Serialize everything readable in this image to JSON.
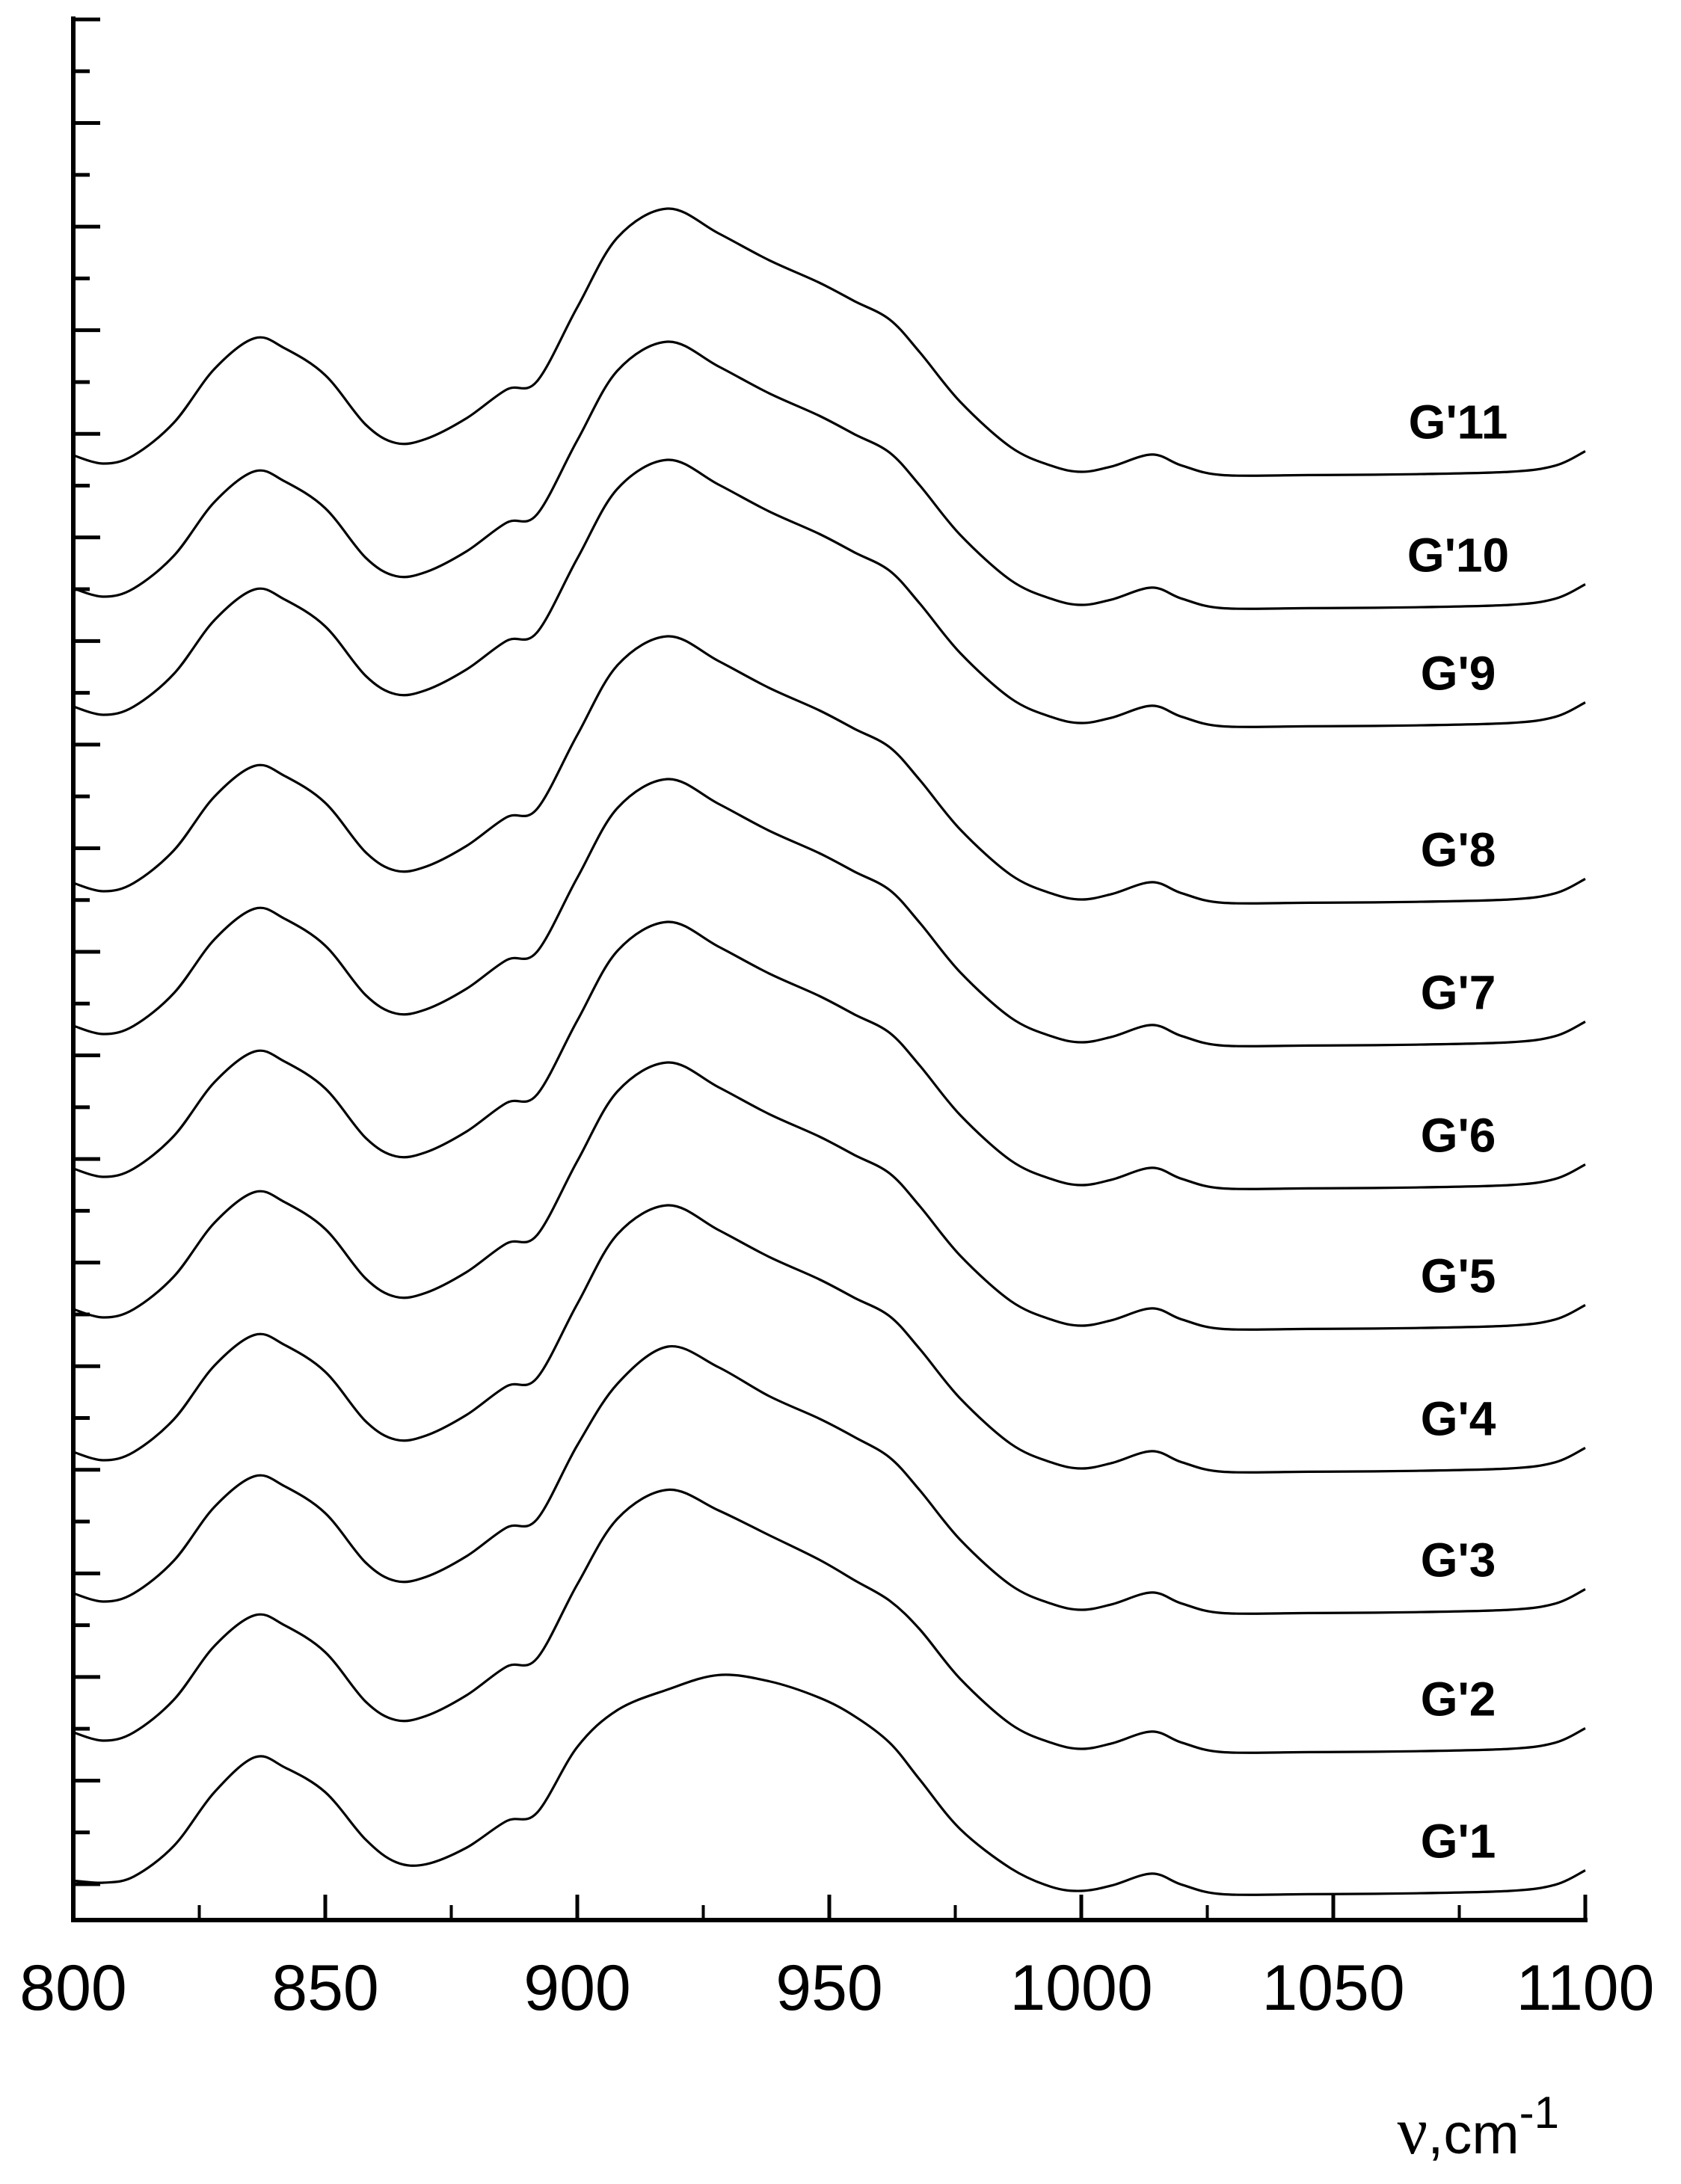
{
  "chart_data": {
    "type": "line",
    "xlim": [
      800,
      1100
    ],
    "x_ticks": [
      800,
      850,
      900,
      950,
      1000,
      1050,
      1100
    ],
    "x_tick_labels": [
      "800",
      "850",
      "900",
      "950",
      "1000",
      "1050",
      "1100"
    ],
    "y_minor_tick_count": 37,
    "xlabel": {
      "symbol": "ν",
      "unit": ",cm",
      "exponent": "-1"
    },
    "grid": false,
    "legend": "none",
    "line_color": "#000000",
    "x": [
      800,
      806,
      812,
      820,
      828,
      836,
      842,
      850,
      858,
      864,
      870,
      878,
      886,
      892,
      900,
      908,
      918,
      928,
      938,
      948,
      955,
      962,
      968,
      976,
      986,
      994,
      1000,
      1006,
      1014,
      1020,
      1028,
      1045,
      1065,
      1085,
      1094,
      1100
    ],
    "series": [
      {
        "name": "G'1",
        "values": [
          0.45,
          0.4,
          0.55,
          1.3,
          2.6,
          3.45,
          3.2,
          2.6,
          1.45,
          0.9,
          0.85,
          1.25,
          1.9,
          2.1,
          3.7,
          4.6,
          5.1,
          5.45,
          5.3,
          4.9,
          4.45,
          3.8,
          2.9,
          1.7,
          0.75,
          0.3,
          0.2,
          0.33,
          0.62,
          0.35,
          0.12,
          0.12,
          0.14,
          0.2,
          0.35,
          0.7
        ]
      },
      {
        "name": "G'2",
        "values": [
          0.6,
          0.4,
          0.6,
          1.4,
          2.7,
          3.45,
          3.2,
          2.55,
          1.35,
          0.9,
          1.0,
          1.5,
          2.2,
          2.4,
          4.2,
          5.8,
          6.5,
          6.0,
          5.4,
          4.8,
          4.3,
          3.8,
          3.1,
          1.9,
          0.8,
          0.35,
          0.2,
          0.33,
          0.62,
          0.35,
          0.12,
          0.12,
          0.14,
          0.2,
          0.35,
          0.7
        ]
      },
      {
        "name": "G'3",
        "values": [
          0.6,
          0.4,
          0.6,
          1.4,
          2.7,
          3.45,
          3.2,
          2.55,
          1.35,
          0.9,
          1.0,
          1.5,
          2.2,
          2.4,
          4.2,
          5.7,
          6.6,
          6.1,
          5.4,
          4.85,
          4.4,
          3.9,
          3.1,
          1.9,
          0.8,
          0.35,
          0.2,
          0.33,
          0.62,
          0.35,
          0.12,
          0.12,
          0.14,
          0.2,
          0.35,
          0.7
        ]
      },
      {
        "name": "G'4",
        "values": [
          0.6,
          0.4,
          0.6,
          1.4,
          2.7,
          3.45,
          3.2,
          2.55,
          1.35,
          0.9,
          1.0,
          1.5,
          2.2,
          2.4,
          4.2,
          5.9,
          6.6,
          6.0,
          5.35,
          4.8,
          4.35,
          3.9,
          3.1,
          1.9,
          0.8,
          0.35,
          0.2,
          0.33,
          0.62,
          0.35,
          0.12,
          0.12,
          0.14,
          0.2,
          0.35,
          0.7
        ]
      },
      {
        "name": "G'5",
        "values": [
          0.6,
          0.4,
          0.6,
          1.4,
          2.7,
          3.45,
          3.2,
          2.55,
          1.35,
          0.9,
          1.0,
          1.5,
          2.2,
          2.4,
          4.2,
          5.9,
          6.6,
          6.0,
          5.35,
          4.8,
          4.35,
          3.9,
          3.1,
          1.9,
          0.8,
          0.35,
          0.2,
          0.33,
          0.62,
          0.35,
          0.12,
          0.12,
          0.14,
          0.2,
          0.35,
          0.7
        ]
      },
      {
        "name": "G'6",
        "values": [
          0.6,
          0.4,
          0.6,
          1.4,
          2.7,
          3.45,
          3.2,
          2.55,
          1.35,
          0.9,
          1.0,
          1.5,
          2.2,
          2.4,
          4.2,
          5.9,
          6.6,
          6.0,
          5.35,
          4.8,
          4.35,
          3.9,
          3.1,
          1.9,
          0.8,
          0.35,
          0.2,
          0.33,
          0.62,
          0.35,
          0.12,
          0.12,
          0.14,
          0.2,
          0.35,
          0.7
        ]
      },
      {
        "name": "G'7",
        "values": [
          0.6,
          0.4,
          0.6,
          1.4,
          2.7,
          3.45,
          3.2,
          2.55,
          1.35,
          0.9,
          1.0,
          1.5,
          2.2,
          2.4,
          4.2,
          5.9,
          6.6,
          6.0,
          5.35,
          4.8,
          4.35,
          3.9,
          3.1,
          1.9,
          0.8,
          0.35,
          0.2,
          0.33,
          0.62,
          0.35,
          0.12,
          0.12,
          0.14,
          0.2,
          0.35,
          0.7
        ]
      },
      {
        "name": "G'8",
        "values": [
          0.6,
          0.4,
          0.6,
          1.4,
          2.7,
          3.45,
          3.2,
          2.55,
          1.35,
          0.9,
          1.0,
          1.5,
          2.2,
          2.4,
          4.2,
          5.9,
          6.6,
          6.0,
          5.35,
          4.8,
          4.35,
          3.9,
          3.1,
          1.9,
          0.8,
          0.35,
          0.2,
          0.33,
          0.62,
          0.35,
          0.12,
          0.12,
          0.14,
          0.2,
          0.35,
          0.7
        ]
      },
      {
        "name": "G'9",
        "values": [
          0.6,
          0.4,
          0.6,
          1.4,
          2.7,
          3.45,
          3.2,
          2.55,
          1.35,
          0.9,
          1.0,
          1.5,
          2.2,
          2.4,
          4.2,
          5.9,
          6.6,
          6.0,
          5.35,
          4.8,
          4.35,
          3.9,
          3.1,
          1.9,
          0.8,
          0.35,
          0.2,
          0.33,
          0.62,
          0.35,
          0.12,
          0.12,
          0.14,
          0.2,
          0.35,
          0.7
        ]
      },
      {
        "name": "G'10",
        "values": [
          0.6,
          0.4,
          0.6,
          1.4,
          2.7,
          3.45,
          3.2,
          2.55,
          1.35,
          0.9,
          1.0,
          1.5,
          2.2,
          2.4,
          4.2,
          5.9,
          6.6,
          6.0,
          5.35,
          4.8,
          4.35,
          3.9,
          3.1,
          1.9,
          0.8,
          0.35,
          0.2,
          0.33,
          0.62,
          0.35,
          0.12,
          0.12,
          0.14,
          0.2,
          0.35,
          0.7
        ]
      },
      {
        "name": "G'11",
        "values": [
          0.6,
          0.4,
          0.6,
          1.4,
          2.7,
          3.45,
          3.2,
          2.55,
          1.35,
          0.9,
          1.0,
          1.5,
          2.2,
          2.4,
          4.2,
          5.9,
          6.6,
          6.0,
          5.35,
          4.8,
          4.35,
          3.9,
          3.1,
          1.9,
          0.8,
          0.35,
          0.2,
          0.33,
          0.62,
          0.35,
          0.12,
          0.12,
          0.14,
          0.2,
          0.35,
          0.7
        ]
      }
    ]
  }
}
